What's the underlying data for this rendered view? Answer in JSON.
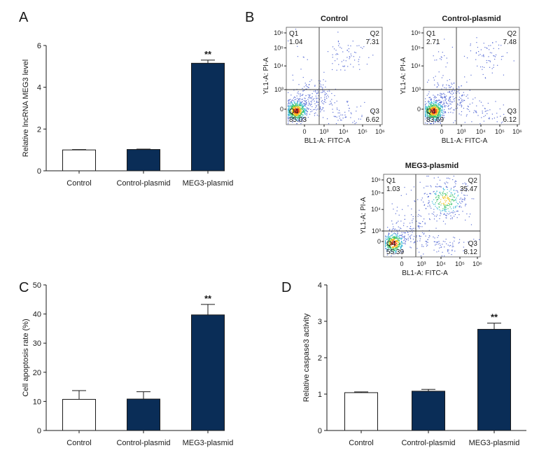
{
  "panels": {
    "A": {
      "letter": "A"
    },
    "B": {
      "letter": "B"
    },
    "C": {
      "letter": "C"
    },
    "D": {
      "letter": "D"
    }
  },
  "colors": {
    "bar_dark": "#0a2d57",
    "bar_light": "#ffffff",
    "axis": "#1a1a1a"
  },
  "chart_data": [
    {
      "id": "A",
      "type": "bar",
      "ylabel": "Relative lncRNA MEG3 level",
      "categories": [
        "Control",
        "Control-plasmid",
        "MEG3-plasmid"
      ],
      "values": [
        1.0,
        1.02,
        5.15
      ],
      "errors": [
        0.02,
        0.02,
        0.15
      ],
      "fills": [
        "light",
        "dark",
        "dark"
      ],
      "significance": [
        "",
        "",
        "**"
      ],
      "ylim": [
        0,
        6
      ],
      "yticks": [
        0,
        2,
        4,
        6
      ]
    },
    {
      "id": "C",
      "type": "bar",
      "ylabel": "Cell apoptosis rate (%)",
      "categories": [
        "Control",
        "Control-plasmid",
        "MEG3-plasmid"
      ],
      "values": [
        10.7,
        10.8,
        39.7
      ],
      "errors": [
        3.0,
        2.5,
        3.6
      ],
      "fills": [
        "light",
        "dark",
        "dark"
      ],
      "significance": [
        "",
        "",
        "**"
      ],
      "ylim": [
        0,
        50
      ],
      "yticks": [
        0,
        10,
        20,
        30,
        40,
        50
      ]
    },
    {
      "id": "D",
      "type": "bar",
      "ylabel": "Relative caspase3 activity",
      "categories": [
        "Control",
        "Control-plasmid",
        "MEG3-plasmid"
      ],
      "values": [
        1.04,
        1.08,
        2.78
      ],
      "errors": [
        0.02,
        0.05,
        0.17
      ],
      "fills": [
        "light",
        "dark",
        "dark"
      ],
      "significance": [
        "",
        "",
        "**"
      ],
      "ylim": [
        0,
        4
      ],
      "yticks": [
        0,
        1,
        2,
        3,
        4
      ]
    },
    {
      "id": "B1",
      "type": "scatter",
      "title": "Control",
      "xlabel": "BL1-A: FITC-A",
      "ylabel": "YL1-A: PI-A",
      "x_ticks": [
        "0",
        "10³",
        "10⁴",
        "10⁵",
        "10⁶"
      ],
      "y_ticks": [
        "0",
        "10³",
        "10⁴",
        "10⁵",
        "10⁶"
      ],
      "quadrants": [
        {
          "name": "Q1",
          "value": "1.04"
        },
        {
          "name": "Q2",
          "value": "7.31"
        },
        {
          "name": "Q3",
          "value": "6.62"
        },
        {
          "name": "Q4",
          "value": "85.03"
        }
      ]
    },
    {
      "id": "B2",
      "type": "scatter",
      "title": "Control-plasmid",
      "xlabel": "BL1-A: FITC-A",
      "ylabel": "YL1-A: PI-A",
      "x_ticks": [
        "0",
        "10³",
        "10⁴",
        "10⁵",
        "10⁶"
      ],
      "y_ticks": [
        "0",
        "10³",
        "10⁴",
        "10⁵",
        "10⁶"
      ],
      "quadrants": [
        {
          "name": "Q1",
          "value": "2.71"
        },
        {
          "name": "Q2",
          "value": "7.48"
        },
        {
          "name": "Q3",
          "value": "6.12"
        },
        {
          "name": "Q4",
          "value": "83.69"
        }
      ]
    },
    {
      "id": "B3",
      "type": "scatter",
      "title": "MEG3-plasmid",
      "xlabel": "BL1-A: FITC-A",
      "ylabel": "YL1-A: PI-A",
      "x_ticks": [
        "0",
        "10³",
        "10⁴",
        "10⁵",
        "10⁶"
      ],
      "y_ticks": [
        "0",
        "10³",
        "10⁴",
        "10⁵",
        "10⁶"
      ],
      "quadrants": [
        {
          "name": "Q1",
          "value": "1.03"
        },
        {
          "name": "Q2",
          "value": "35.47"
        },
        {
          "name": "Q3",
          "value": "8.12"
        },
        {
          "name": "Q4",
          "value": "55.39"
        }
      ]
    }
  ]
}
